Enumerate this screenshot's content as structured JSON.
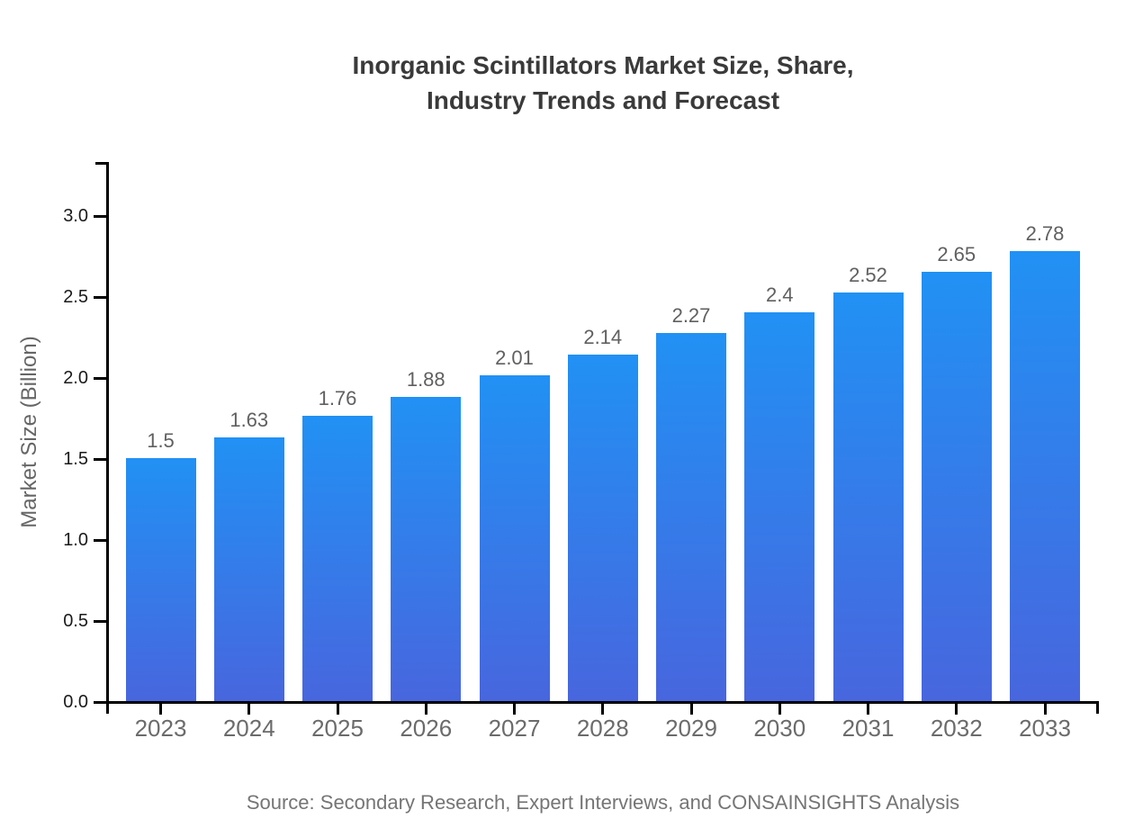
{
  "chart_data": {
    "type": "bar",
    "title_lines": [
      "Inorganic Scintillators Market Size, Share,",
      "Industry Trends and Forecast"
    ],
    "categories": [
      "2023",
      "2024",
      "2025",
      "2026",
      "2027",
      "2028",
      "2029",
      "2030",
      "2031",
      "2032",
      "2033"
    ],
    "values": [
      1.5,
      1.63,
      1.76,
      1.88,
      2.01,
      2.14,
      2.27,
      2.4,
      2.52,
      2.65,
      2.78
    ],
    "value_labels": [
      "1.5",
      "1.63",
      "1.76",
      "1.88",
      "2.01",
      "2.14",
      "2.27",
      "2.4",
      "2.52",
      "2.65",
      "2.78"
    ],
    "xlabel": "",
    "ylabel": "Market Size (Billion)",
    "y_ticks": [
      0.0,
      0.5,
      1.0,
      1.5,
      2.0,
      2.5,
      3.0
    ],
    "y_tick_labels": [
      "0.0",
      "0.5",
      "1.0",
      "1.5",
      "2.0",
      "2.5",
      "3.0"
    ],
    "ylim": [
      0,
      3.33
    ],
    "grid": false,
    "legend": "none",
    "source": "Source: Secondary Research, Expert Interviews, and CONSAINSIGHTS Analysis",
    "colors": {
      "bar_gradient_top": "#2191F4",
      "bar_gradient_bottom": "#4866DE",
      "axis": "#000000",
      "title": "#3a3a3a",
      "y_tick_label": "#1a1a1a",
      "x_tick_label": "#6b6b6b",
      "value_label": "#606060",
      "ylabel_color": "#666666",
      "source_color": "#757575"
    }
  }
}
